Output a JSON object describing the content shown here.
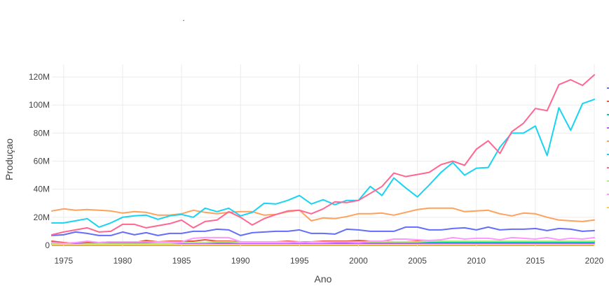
{
  "chart_data": {
    "type": "line",
    "title": ".",
    "xlabel": "Ano",
    "ylabel": "Produçao",
    "xlim": [
      1974,
      2020
    ],
    "ylim": [
      -2,
      129
    ],
    "x_ticks": [
      1975,
      1980,
      1985,
      1990,
      1995,
      2000,
      2005,
      2010,
      2015,
      2020
    ],
    "y_ticks": [
      0,
      20,
      40,
      60,
      80,
      100,
      120
    ],
    "y_tick_labels": [
      "0",
      "20M",
      "40M",
      "60M",
      "80M",
      "100M",
      "120M"
    ],
    "y_unit": "millions",
    "grid": true,
    "legend_position": "right (clipped)",
    "x": [
      1974,
      1975,
      1976,
      1977,
      1978,
      1979,
      1980,
      1981,
      1982,
      1983,
      1984,
      1985,
      1986,
      1987,
      1988,
      1989,
      1990,
      1991,
      1992,
      1993,
      1994,
      1995,
      1996,
      1997,
      1998,
      1999,
      2000,
      2001,
      2002,
      2003,
      2004,
      2005,
      2006,
      2007,
      2008,
      2009,
      2010,
      2011,
      2012,
      2013,
      2014,
      2015,
      2016,
      2017,
      2018,
      2019,
      2020
    ],
    "series": [
      {
        "color": "#636efa",
        "values": [
          7.0,
          7.5,
          9.5,
          8.5,
          7.0,
          7.0,
          9.5,
          7.5,
          9.0,
          7.0,
          8.5,
          8.5,
          10.0,
          10.0,
          11.5,
          11.0,
          7.0,
          9.0,
          9.5,
          10.0,
          10.0,
          11.0,
          8.5,
          8.5,
          8.0,
          11.5,
          11.0,
          10.0,
          10.0,
          10.0,
          13.0,
          13.0,
          11.0,
          11.0,
          12.0,
          12.5,
          11.0,
          13.0,
          11.0,
          11.5,
          11.5,
          12.0,
          10.5,
          12.0,
          11.5,
          10.0,
          10.5
        ]
      },
      {
        "color": "#ef553b",
        "values": [
          3.0,
          2.0,
          1.5,
          2.0,
          2.0,
          2.5,
          2.0,
          2.0,
          3.5,
          2.5,
          3.0,
          3.0,
          3.0,
          4.0,
          3.0,
          3.0,
          2.5,
          2.5,
          2.5,
          2.5,
          3.0,
          2.5,
          2.5,
          3.0,
          3.0,
          3.0,
          3.5,
          3.0,
          3.0,
          2.5,
          2.5,
          3.0,
          3.0,
          3.0,
          3.0,
          3.0,
          3.0,
          3.0,
          3.0,
          3.0,
          3.0,
          3.0,
          3.0,
          3.0,
          3.0,
          3.0,
          3.0
        ]
      },
      {
        "color": "#00cc96",
        "values": [
          1.0,
          1.0,
          1.5,
          1.5,
          1.5,
          1.5,
          2.0,
          1.5,
          1.5,
          1.5,
          2.0,
          2.0,
          2.0,
          2.0,
          2.5,
          2.5,
          2.0,
          2.0,
          2.0,
          2.0,
          2.0,
          2.0,
          2.0,
          2.0,
          2.5,
          2.5,
          2.5,
          2.5,
          2.5,
          2.5,
          2.5,
          2.5,
          2.5,
          2.5,
          2.5,
          2.5,
          2.5,
          2.5,
          2.5,
          2.5,
          2.5,
          2.5,
          2.5,
          2.5,
          2.5,
          2.5,
          2.5
        ]
      },
      {
        "color": "#ab63fa",
        "values": [
          1.5,
          1.5,
          1.5,
          1.5,
          1.5,
          1.5,
          1.5,
          1.5,
          1.5,
          1.5,
          1.5,
          1.5,
          1.5,
          1.5,
          1.5,
          1.5,
          1.5,
          1.5,
          1.5,
          1.5,
          1.5,
          1.5,
          1.5,
          1.5,
          1.5,
          1.5,
          1.5,
          1.5,
          1.5,
          1.5,
          1.5,
          1.5,
          1.5,
          1.5,
          1.5,
          1.5,
          1.5,
          1.5,
          1.5,
          1.5,
          1.5,
          1.5,
          1.5,
          1.5,
          1.5,
          1.5,
          1.5
        ]
      },
      {
        "color": "#ffa15a",
        "values": [
          24.5,
          26.0,
          25.0,
          25.5,
          25.0,
          24.5,
          23.0,
          24.0,
          23.5,
          21.5,
          21.5,
          22.5,
          25.0,
          23.5,
          22.5,
          23.5,
          24.0,
          24.0,
          21.5,
          22.0,
          24.0,
          25.0,
          17.5,
          19.5,
          19.0,
          20.5,
          22.5,
          22.5,
          23.0,
          21.5,
          23.5,
          25.5,
          26.5,
          26.5,
          26.5,
          24.0,
          24.5,
          25.0,
          22.5,
          21.0,
          23.0,
          22.5,
          20.0,
          18.0,
          17.5,
          17.0,
          18.0
        ]
      },
      {
        "color": "#19d3f3",
        "values": [
          16.0,
          16.0,
          17.5,
          19.0,
          13.0,
          16.0,
          20.0,
          21.0,
          21.5,
          18.5,
          21.0,
          22.0,
          20.0,
          26.5,
          24.0,
          26.5,
          21.0,
          23.5,
          30.0,
          29.5,
          32.0,
          35.5,
          29.5,
          32.5,
          29.0,
          32.0,
          32.0,
          42.0,
          35.5,
          48.0,
          41.0,
          34.5,
          43.0,
          52.0,
          59.0,
          50.0,
          55.0,
          55.5,
          70.0,
          80.0,
          80.0,
          85.0,
          64.0,
          98.0,
          82.0,
          101.0,
          104.0
        ]
      },
      {
        "color": "#ff6692",
        "values": [
          7.5,
          9.5,
          11.0,
          12.5,
          9.5,
          10.0,
          15.0,
          15.0,
          12.5,
          14.0,
          15.5,
          18.0,
          12.5,
          17.0,
          18.0,
          24.0,
          20.0,
          14.5,
          19.0,
          22.0,
          24.5,
          25.0,
          22.5,
          26.0,
          31.0,
          30.5,
          32.0,
          37.0,
          42.0,
          51.5,
          49.0,
          50.5,
          52.0,
          57.5,
          60.0,
          57.0,
          68.5,
          74.5,
          65.5,
          81.0,
          87.0,
          97.5,
          96.0,
          114.5,
          118.0,
          114.0,
          121.5
        ]
      },
      {
        "color": "#b6e880",
        "values": [
          1.5,
          1.0,
          0.5,
          1.0,
          1.0,
          1.0,
          1.0,
          1.0,
          1.0,
          1.5,
          1.5,
          2.0,
          2.0,
          2.0,
          2.5,
          2.5,
          2.0,
          2.0,
          2.0,
          2.0,
          2.0,
          2.5,
          2.0,
          2.0,
          2.5,
          2.5,
          2.5,
          2.5,
          2.5,
          2.5,
          2.5,
          2.5,
          3.0,
          3.0,
          3.0,
          3.0,
          3.0,
          3.0,
          3.0,
          3.0,
          3.0,
          3.0,
          3.0,
          3.0,
          3.0,
          3.0,
          3.0
        ]
      },
      {
        "color": "#ff97ff",
        "values": [
          2.0,
          1.5,
          2.0,
          3.0,
          2.0,
          2.5,
          2.5,
          2.5,
          2.5,
          2.5,
          2.5,
          2.5,
          5.0,
          5.5,
          5.5,
          5.5,
          2.5,
          2.5,
          2.5,
          2.5,
          2.5,
          2.0,
          2.5,
          2.5,
          2.5,
          2.5,
          2.0,
          3.0,
          3.0,
          4.5,
          4.5,
          4.0,
          3.5,
          4.0,
          5.5,
          4.5,
          5.0,
          5.0,
          4.0,
          5.5,
          5.0,
          4.5,
          5.5,
          4.0,
          5.0,
          4.5,
          5.5
        ]
      },
      {
        "color": "#fecb52",
        "values": [
          0.5,
          0.5,
          0.5,
          0.5,
          0.5,
          0.5,
          0.5,
          0.5,
          0.5,
          0.5,
          0.5,
          0.5,
          0.5,
          0.5,
          0.5,
          0.5,
          0.5,
          0.5,
          0.5,
          0.5,
          0.5,
          0.5,
          0.5,
          0.5,
          0.5,
          0.5,
          0.5,
          0.5,
          0.5,
          0.5,
          0.5,
          0.5,
          0.5,
          0.5,
          0.5,
          0.5,
          0.5,
          0.5,
          0.5,
          0.5,
          0.5,
          0.5,
          0.5,
          0.5,
          0.5,
          0.5,
          0.5
        ]
      }
    ]
  }
}
